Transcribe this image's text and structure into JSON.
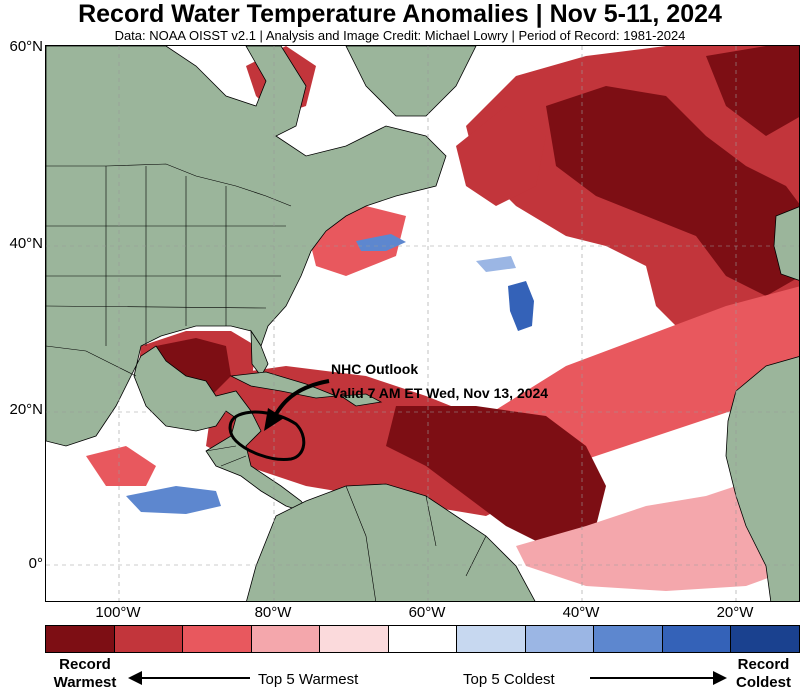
{
  "title": "Record Water Temperature Anomalies | Nov 5-11, 2024",
  "subtitle": "Data: NOAA OISST v2.1 | Analysis and Image Credit: Michael Lowry | Period of Record: 1981-2024",
  "map": {
    "lat_labels": [
      "60°N",
      "40°N",
      "20°N",
      "0°"
    ],
    "lon_labels": [
      "100°W",
      "80°W",
      "60°W",
      "40°W",
      "20°W"
    ],
    "land_color": "#9bb59b",
    "ocean_color": "#ffffff",
    "annotation": {
      "line1": "NHC Outlook",
      "line2": "Valid 7 AM ET Wed, Nov 13, 2024"
    }
  },
  "legend": {
    "colors": [
      "#7d0e14",
      "#c2353b",
      "#e8585e",
      "#f4a7ac",
      "#fbdadc",
      "#ffffff",
      "#c7d8f0",
      "#9bb6e4",
      "#5d87cf",
      "#3462b8",
      "#1a418f"
    ],
    "left_label_line1": "Record",
    "left_label_line2": "Warmest",
    "right_label_line1": "Record",
    "right_label_line2": "Coldest",
    "mid_left": "Top 5 Warmest",
    "mid_right": "Top 5 Coldest"
  }
}
